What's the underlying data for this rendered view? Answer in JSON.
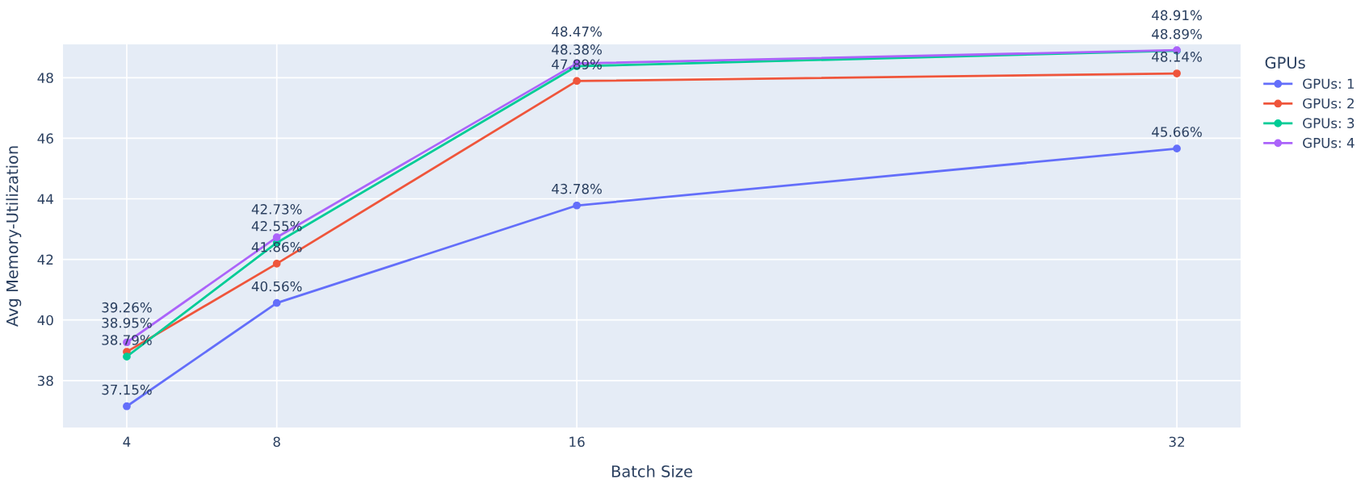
{
  "chart_data": {
    "type": "line",
    "xlabel": "Batch Size",
    "ylabel": "Avg Memory-Utilization",
    "legend_title": "GPUs",
    "legend": "right",
    "x": [
      4,
      8,
      16,
      32
    ],
    "xlim": [
      2.3,
      33.7
    ],
    "xticks": [
      4,
      8,
      16,
      32
    ],
    "ylim": [
      36.45,
      49.1
    ],
    "yticks": [
      38,
      40,
      42,
      44,
      46,
      48
    ],
    "grid": true,
    "marker": "circle",
    "line_style": "solid",
    "series": [
      {
        "name": "GPUs: 1",
        "color": "#636efa",
        "values": [
          37.15,
          40.56,
          43.78,
          45.66
        ],
        "value_labels": [
          "37.15%",
          "40.56%",
          "43.78%",
          "45.66%"
        ]
      },
      {
        "name": "GPUs: 2",
        "color": "#ef553b",
        "values": [
          38.95,
          41.86,
          47.89,
          48.14
        ],
        "value_labels": [
          "38.95%",
          "41.86%",
          "47.89%",
          "48.14%"
        ]
      },
      {
        "name": "GPUs: 3",
        "color": "#00cc96",
        "values": [
          38.79,
          42.55,
          48.38,
          48.89
        ],
        "value_labels": [
          "38.79%",
          "42.55%",
          "48.38%",
          "48.89%"
        ]
      },
      {
        "name": "GPUs: 4",
        "color": "#ab63fa",
        "values": [
          39.26,
          42.73,
          48.47,
          48.91
        ],
        "value_labels": [
          "39.26%",
          "42.73%",
          "48.47%",
          "48.91%"
        ]
      }
    ]
  }
}
